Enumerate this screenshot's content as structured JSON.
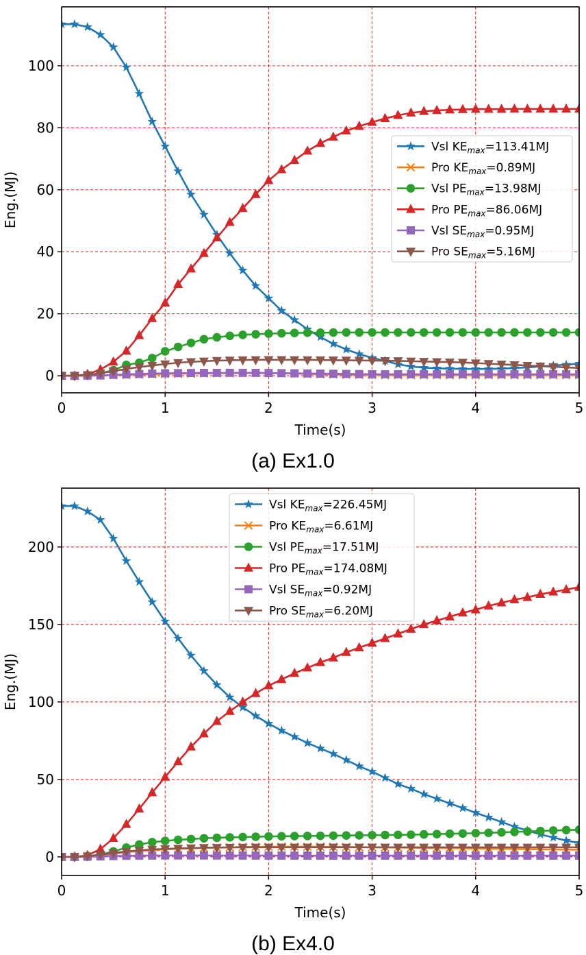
{
  "figure": {
    "panels": [
      {
        "caption": "(a) Ex1.0",
        "legend_location": "center-right",
        "chart_data": {
          "type": "line",
          "xlabel": "Time(s)",
          "ylabel": "Eng.(MJ)",
          "xlim": [
            0,
            5
          ],
          "ylim": [
            -5.5,
            119
          ],
          "xticks": [
            0,
            1,
            2,
            3,
            4,
            5
          ],
          "yticks": [
            0,
            20,
            40,
            60,
            80,
            100
          ],
          "grid": true,
          "x": [
            0,
            0.125,
            0.25,
            0.375,
            0.5,
            0.625,
            0.75,
            0.875,
            1.0,
            1.125,
            1.25,
            1.375,
            1.5,
            1.625,
            1.75,
            1.875,
            2.0,
            2.125,
            2.25,
            2.375,
            2.5,
            2.625,
            2.75,
            2.875,
            3.0,
            3.125,
            3.25,
            3.375,
            3.5,
            3.625,
            3.75,
            3.875,
            4.0,
            4.125,
            4.25,
            4.375,
            4.5,
            4.625,
            4.75,
            4.875,
            5.0
          ],
          "series": [
            {
              "name": "Vsl KE",
              "sub": "max",
              "value_label": "=113.41MJ",
              "color": "#1f77b4",
              "marker": "star",
              "values": [
                113.4,
                113.4,
                112.5,
                110,
                106,
                99.5,
                91,
                82,
                74,
                66,
                58.5,
                52,
                45.5,
                39.5,
                34,
                29,
                25,
                21,
                18,
                15,
                12.5,
                10.3,
                8.5,
                7,
                5.8,
                4.8,
                3.7,
                3,
                2.6,
                2.4,
                2.3,
                2.2,
                2.2,
                2.2,
                2.3,
                2.5,
                2.7,
                3,
                3.3,
                3.6,
                3.9
              ]
            },
            {
              "name": "Pro KE",
              "sub": "max",
              "value_label": "=0.89MJ",
              "color": "#ff7f0e",
              "marker": "x",
              "values": [
                0,
                0,
                0.05,
                0.1,
                0.2,
                0.3,
                0.4,
                0.5,
                0.6,
                0.65,
                0.7,
                0.75,
                0.8,
                0.85,
                0.88,
                0.89,
                0.85,
                0.8,
                0.7,
                0.6,
                0.5,
                0.4,
                0.35,
                0.3,
                0.25,
                0.2,
                0.2,
                0.2,
                0.2,
                0.2,
                0.2,
                0.2,
                0.2,
                0.2,
                0.2,
                0.2,
                0.2,
                0.2,
                0.2,
                0.2,
                0.2
              ]
            },
            {
              "name": "Vsl PE",
              "sub": "max",
              "value_label": "=13.98MJ",
              "color": "#2ca02c",
              "marker": "circle",
              "values": [
                0,
                0,
                0.2,
                0.8,
                1.8,
                3.5,
                4.2,
                5.7,
                7.9,
                9.3,
                10.6,
                11.8,
                12.4,
                12.9,
                13.2,
                13.4,
                13.6,
                13.7,
                13.8,
                13.9,
                13.9,
                13.95,
                13.98,
                13.98,
                13.98,
                13.98,
                13.98,
                13.98,
                13.98,
                13.98,
                13.98,
                13.98,
                13.98,
                13.98,
                13.98,
                13.98,
                13.98,
                13.98,
                13.98,
                13.98,
                13.98
              ]
            },
            {
              "name": "Pro PE",
              "sub": "max",
              "value_label": "=86.06MJ",
              "color": "#d62728",
              "marker": "triangle-up",
              "values": [
                0,
                0,
                0.5,
                2,
                4.5,
                8,
                13,
                18.5,
                23.5,
                29.5,
                34.5,
                39.5,
                44.5,
                49.5,
                54,
                58.5,
                63,
                66.5,
                69.5,
                72.5,
                75,
                77,
                79,
                80.5,
                81.8,
                83,
                84,
                84.8,
                85.3,
                85.6,
                85.8,
                85.9,
                86,
                86,
                86,
                86.06,
                86.06,
                86.06,
                86.06,
                86.06,
                86.06
              ]
            },
            {
              "name": "Vsl SE",
              "sub": "max",
              "value_label": "=0.95MJ",
              "color": "#9467bd",
              "marker": "square",
              "values": [
                0,
                0,
                0.05,
                0.1,
                0.3,
                0.45,
                0.6,
                0.7,
                0.8,
                0.85,
                0.9,
                0.92,
                0.94,
                0.95,
                0.95,
                0.94,
                0.9,
                0.85,
                0.8,
                0.75,
                0.7,
                0.65,
                0.6,
                0.55,
                0.5,
                0.5,
                0.5,
                0.5,
                0.5,
                0.5,
                0.5,
                0.5,
                0.5,
                0.5,
                0.5,
                0.5,
                0.5,
                0.5,
                0.5,
                0.5,
                0.5
              ]
            },
            {
              "name": "Pro SE",
              "sub": "max",
              "value_label": "=5.16MJ",
              "color": "#8c564b",
              "marker": "triangle-down",
              "values": [
                0,
                0,
                0.3,
                0.8,
                1.5,
                2.2,
                2.8,
                3.3,
                3.8,
                4.2,
                4.5,
                4.7,
                4.9,
                5.0,
                5.1,
                5.15,
                5.16,
                5.16,
                5.15,
                5.12,
                5.1,
                5.05,
                5.0,
                4.95,
                4.9,
                4.85,
                4.8,
                4.7,
                4.6,
                4.5,
                4.4,
                4.3,
                4.1,
                3.9,
                3.7,
                3.5,
                3.3,
                3.1,
                2.9,
                2.7,
                2.5
              ]
            }
          ]
        }
      },
      {
        "caption": "(b) Ex4.0",
        "legend_location": "upper-center",
        "chart_data": {
          "type": "line",
          "xlabel": "Time(s)",
          "ylabel": "Eng.(MJ)",
          "xlim": [
            0,
            5
          ],
          "ylim": [
            -12,
            238
          ],
          "xticks": [
            0,
            1,
            2,
            3,
            4,
            5
          ],
          "yticks": [
            0,
            50,
            100,
            150,
            200
          ],
          "grid": true,
          "x": [
            0,
            0.125,
            0.25,
            0.375,
            0.5,
            0.625,
            0.75,
            0.875,
            1.0,
            1.125,
            1.25,
            1.375,
            1.5,
            1.625,
            1.75,
            1.875,
            2.0,
            2.125,
            2.25,
            2.375,
            2.5,
            2.625,
            2.75,
            2.875,
            3.0,
            3.125,
            3.25,
            3.375,
            3.5,
            3.625,
            3.75,
            3.875,
            4.0,
            4.125,
            4.25,
            4.375,
            4.5,
            4.625,
            4.75,
            4.875,
            5.0
          ],
          "series": [
            {
              "name": "Vsl KE",
              "sub": "max",
              "value_label": "=226.45MJ",
              "color": "#1f77b4",
              "marker": "star",
              "values": [
                226.45,
                226.45,
                223,
                217.5,
                205.5,
                191,
                177.5,
                164.5,
                152,
                141,
                130,
                120,
                111,
                103,
                96.5,
                91,
                86,
                81.5,
                77.5,
                73.5,
                70,
                66.5,
                62.5,
                58.5,
                55,
                51,
                47,
                44,
                40.5,
                37.5,
                34.5,
                31.5,
                28.5,
                25.5,
                22.5,
                19.5,
                17,
                14.5,
                12.5,
                10.5,
                9
              ]
            },
            {
              "name": "Pro KE",
              "sub": "max",
              "value_label": "=6.61MJ",
              "color": "#ff7f0e",
              "marker": "x",
              "values": [
                0,
                0,
                0.5,
                1,
                2,
                3,
                3.8,
                4.3,
                4.8,
                5.2,
                5.5,
                5.8,
                6.0,
                6.2,
                6.4,
                6.5,
                6.55,
                6.6,
                6.61,
                6.6,
                6.55,
                6.5,
                6.4,
                6.3,
                6.2,
                6.1,
                6.0,
                5.9,
                5.8,
                5.7,
                5.6,
                5.5,
                5.4,
                5.3,
                5.2,
                5.1,
                5.0,
                4.9,
                4.8,
                4.7,
                4.6
              ]
            },
            {
              "name": "Vsl PE",
              "sub": "max",
              "value_label": "=17.51MJ",
              "color": "#2ca02c",
              "marker": "circle",
              "values": [
                0,
                0,
                0.5,
                1.5,
                3.5,
                6,
                8,
                9.5,
                10.3,
                11,
                11.5,
                12,
                12.3,
                12.6,
                12.8,
                13,
                13.2,
                13.3,
                13.4,
                13.5,
                13.6,
                13.7,
                13.8,
                13.9,
                14.0,
                14.1,
                14.2,
                14.3,
                14.5,
                14.7,
                14.9,
                15.1,
                15.3,
                15.5,
                15.8,
                16.1,
                16.4,
                16.7,
                17.0,
                17.3,
                17.51
              ]
            },
            {
              "name": "Pro PE",
              "sub": "max",
              "value_label": "=174.08MJ",
              "color": "#d62728",
              "marker": "triangle-up",
              "values": [
                0,
                0,
                1,
                5,
                12,
                21,
                31,
                41.5,
                51.5,
                61.5,
                71,
                79.5,
                87.5,
                94,
                100,
                105.5,
                110.5,
                114.5,
                118.5,
                122,
                125.5,
                128.5,
                132,
                135,
                138,
                141,
                144,
                147,
                150,
                152.5,
                155,
                157.5,
                159.5,
                162,
                164,
                166,
                167.5,
                169.5,
                171,
                172.5,
                174.08
              ]
            },
            {
              "name": "Vsl SE",
              "sub": "max",
              "value_label": "=0.92MJ",
              "color": "#9467bd",
              "marker": "square",
              "values": [
                0,
                0,
                0.1,
                0.3,
                0.5,
                0.7,
                0.8,
                0.85,
                0.9,
                0.92,
                0.92,
                0.9,
                0.88,
                0.86,
                0.85,
                0.84,
                0.83,
                0.82,
                0.81,
                0.8,
                0.8,
                0.8,
                0.8,
                0.8,
                0.8,
                0.8,
                0.8,
                0.8,
                0.8,
                0.8,
                0.8,
                0.8,
                0.8,
                0.8,
                0.8,
                0.8,
                0.8,
                0.8,
                0.8,
                0.8,
                0.8
              ]
            },
            {
              "name": "Pro SE",
              "sub": "max",
              "value_label": "=6.20MJ",
              "color": "#8c564b",
              "marker": "triangle-down",
              "values": [
                0,
                0,
                0.5,
                1.5,
                2.5,
                3.5,
                4.2,
                4.8,
                5.2,
                5.5,
                5.7,
                5.9,
                6.0,
                6.1,
                6.15,
                6.2,
                6.2,
                6.2,
                6.2,
                6.2,
                6.2,
                6.2,
                6.2,
                6.2,
                6.2,
                6.2,
                6.2,
                6.2,
                6.2,
                6.2,
                6.2,
                6.2,
                6.2,
                6.2,
                6.2,
                6.2,
                6.2,
                6.2,
                6.2,
                6.2,
                6.2
              ]
            }
          ]
        }
      }
    ]
  }
}
